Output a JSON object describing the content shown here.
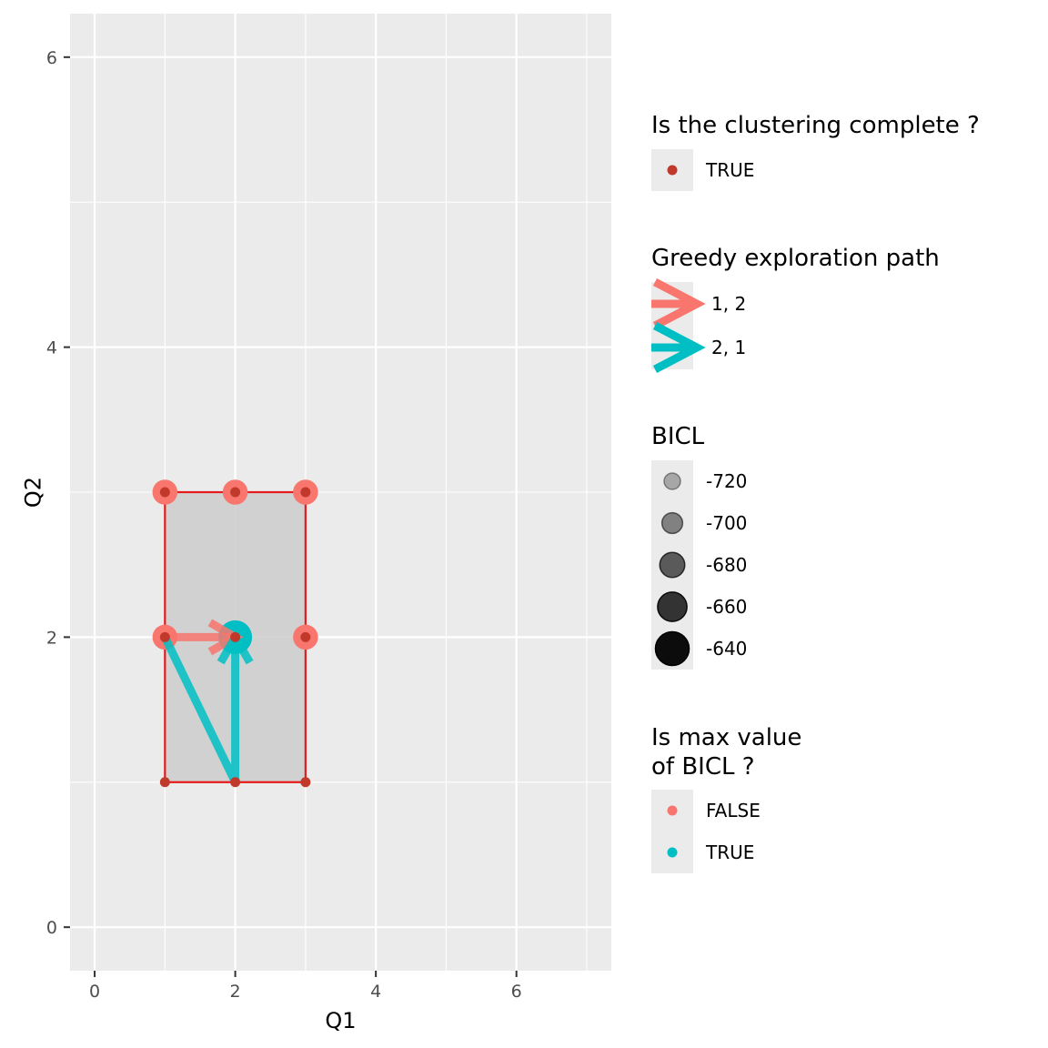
{
  "chart_data": {
    "type": "scatter",
    "xlabel": "Q1",
    "ylabel": "Q2",
    "xlim": [
      -0.35,
      7.35
    ],
    "ylim": [
      -0.3,
      6.3
    ],
    "x_ticks": [
      0,
      2,
      4,
      6
    ],
    "y_ticks": [
      0,
      2,
      4,
      6
    ],
    "grid": true,
    "explored_region": {
      "x": [
        1,
        3
      ],
      "y": [
        1,
        3
      ],
      "fill": "#cccccc",
      "border": "#e41a1c"
    },
    "points": [
      {
        "q1": 1,
        "q2": 1,
        "bicl": null,
        "is_max": null,
        "complete": true
      },
      {
        "q1": 2,
        "q2": 1,
        "bicl": null,
        "is_max": null,
        "complete": true
      },
      {
        "q1": 3,
        "q2": 1,
        "bicl": null,
        "is_max": null,
        "complete": true
      },
      {
        "q1": 1,
        "q2": 2,
        "bicl": -680,
        "is_max": false,
        "complete": true
      },
      {
        "q1": 2,
        "q2": 2,
        "bicl": -640,
        "is_max": true,
        "complete": true
      },
      {
        "q1": 3,
        "q2": 2,
        "bicl": -680,
        "is_max": false,
        "complete": true
      },
      {
        "q1": 1,
        "q2": 3,
        "bicl": -680,
        "is_max": false,
        "complete": true
      },
      {
        "q1": 2,
        "q2": 3,
        "bicl": -680,
        "is_max": false,
        "complete": true
      },
      {
        "q1": 3,
        "q2": 3,
        "bicl": -680,
        "is_max": false,
        "complete": true
      }
    ],
    "paths": [
      {
        "name": "1, 2",
        "color": "#f8766d",
        "points": [
          [
            1,
            2
          ],
          [
            2,
            2
          ]
        ]
      },
      {
        "name": "2, 1",
        "color": "#00bfc4",
        "points": [
          [
            1,
            2
          ],
          [
            2,
            1
          ],
          [
            2,
            2
          ]
        ]
      }
    ],
    "legend": {
      "placement": "right",
      "complete": {
        "title": "Is the clustering complete ?",
        "entries": [
          {
            "label": "TRUE",
            "color": "#c0392b"
          }
        ]
      },
      "path": {
        "title": "Greedy exploration path",
        "entries": [
          {
            "label": "1, 2",
            "color": "#f8766d"
          },
          {
            "label": "2, 1",
            "color": "#00bfc4"
          }
        ]
      },
      "bicl": {
        "title": "BICL",
        "entries": [
          {
            "label": "-720",
            "value": -720
          },
          {
            "label": "-700",
            "value": -700
          },
          {
            "label": "-680",
            "value": -680
          },
          {
            "label": "-660",
            "value": -660
          },
          {
            "label": "-640",
            "value": -640
          }
        ]
      },
      "max": {
        "title_lines": [
          "Is max value",
          "of BICL ?"
        ],
        "entries": [
          {
            "label": "FALSE",
            "color": "#f8766d"
          },
          {
            "label": "TRUE",
            "color": "#00bfc4"
          }
        ]
      }
    }
  }
}
